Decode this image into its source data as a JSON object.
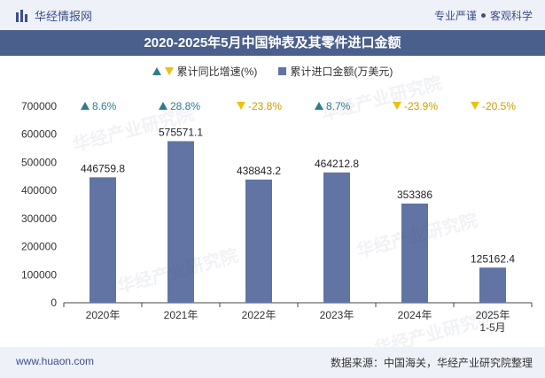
{
  "header": {
    "brand": "华经情报网",
    "slogan_left": "专业严谨",
    "slogan_right": "客观科学"
  },
  "title": "2020-2025年5月中国钟表及其零件进口金额",
  "legend": {
    "growth": "累计同比增速(%)",
    "amount": "累计进口金额(万美元)"
  },
  "colors": {
    "bar": "#6174a3",
    "up": "#2e7d8c",
    "down": "#f0c010",
    "title_bg": "#4a5f8c"
  },
  "watermark": "华经产业研究院",
  "chart_data": {
    "type": "bar",
    "title": "2020-2025年5月中国钟表及其零件进口金额",
    "categories": [
      "2020年",
      "2021年",
      "2022年",
      "2023年",
      "2024年",
      "2025年\n1-5月"
    ],
    "series": [
      {
        "name": "累计进口金额(万美元)",
        "values": [
          446759.8,
          575571.1,
          438843.2,
          464212.8,
          353386,
          125162.4
        ],
        "labels": [
          "446759.8",
          "575571.1",
          "438843.2",
          "464212.8",
          "353386",
          "125162.4"
        ]
      },
      {
        "name": "累计同比增速(%)",
        "values": [
          8.6,
          28.8,
          -23.8,
          8.7,
          -23.9,
          -20.5
        ],
        "labels": [
          "8.6%",
          "28.8%",
          "-23.8%",
          "8.7%",
          "-23.9%",
          "-20.5%"
        ]
      }
    ],
    "yticks": [
      "0",
      "100000",
      "200000",
      "300000",
      "400000",
      "500000",
      "600000",
      "700000"
    ],
    "ylim": [
      0,
      700000
    ],
    "grid": false,
    "legend_position": "top"
  },
  "footer": {
    "url": "www.huaon.com",
    "source": "数据来源：中国海关，华经产业研究院整理"
  }
}
